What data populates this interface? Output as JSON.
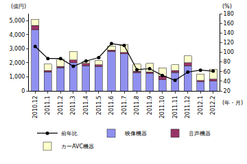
{
  "chart_data": {
    "type": "bar",
    "stacked": true,
    "grid": false,
    "legend": "bottom",
    "y_label": "(億円)",
    "y2_label": "(%)",
    "x_label": "(年・月)",
    "categories": [
      "2010.12",
      "2011.1",
      "2011.2",
      "2011.3",
      "2011.4",
      "2011.5",
      "2011.6",
      "2011.7",
      "2011.8",
      "2011.9",
      "2011.10",
      "2011.11",
      "2011.12",
      "2012.1",
      "2012.2"
    ],
    "ylim": [
      0,
      5500
    ],
    "yticks": [
      0,
      {
        "value": 1000,
        "label": "1,000"
      },
      {
        "value": 2000,
        "label": "2,000"
      },
      {
        "value": 3000,
        "label": "3,000"
      },
      {
        "value": 4000,
        "label": "4,000"
      },
      {
        "value": 5000,
        "label": "5,000"
      }
    ],
    "y2lim": [
      20,
      180
    ],
    "y2ticks": [
      20,
      40,
      60,
      80,
      100,
      120,
      140,
      160,
      180
    ],
    "series": [
      {
        "name": "映像機器",
        "type": "bar",
        "color": "#9090f0",
        "values": [
          4350,
          1350,
          1650,
          2000,
          1800,
          1750,
          2800,
          2650,
          1300,
          1250,
          800,
          1300,
          1800,
          650,
          700
        ]
      },
      {
        "name": "音声機器",
        "type": "bar",
        "color": "#993366",
        "values": [
          300,
          100,
          100,
          200,
          150,
          100,
          100,
          100,
          100,
          100,
          250,
          150,
          200,
          100,
          150
        ]
      },
      {
        "name": "カーAVC機器",
        "type": "bar",
        "color": "#ffffcc",
        "values": [
          450,
          450,
          500,
          600,
          150,
          300,
          300,
          550,
          500,
          600,
          600,
          400,
          500,
          450,
          700
        ]
      },
      {
        "name": "前年比",
        "type": "line",
        "axis": "y2",
        "color": "#000000",
        "marker": "circle",
        "values": [
          112,
          87,
          87,
          71,
          82,
          89,
          118,
          114,
          64,
          66,
          52,
          42,
          59,
          63,
          61
        ]
      }
    ]
  }
}
